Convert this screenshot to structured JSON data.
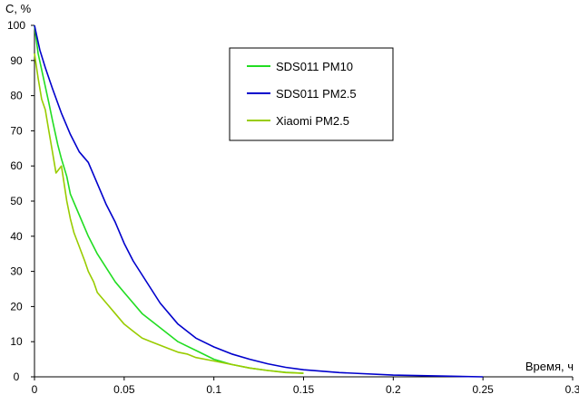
{
  "chart_data": {
    "type": "line",
    "title": "",
    "xlabel": "Время, ч",
    "ylabel": "С, %",
    "xlim": [
      0,
      0.3
    ],
    "ylim": [
      0,
      100
    ],
    "x_ticks": [
      "0",
      "0.05",
      "0.1",
      "0.15",
      "0.2",
      "0.25",
      "0.3"
    ],
    "y_ticks": [
      "0",
      "10",
      "20",
      "30",
      "40",
      "50",
      "60",
      "70",
      "80",
      "90",
      "100"
    ],
    "grid": false,
    "legend_position": "top-center",
    "series": [
      {
        "name": "SDS011 PM10",
        "color": "#22dd22",
        "x": [
          0,
          0.002,
          0.005,
          0.008,
          0.01,
          0.013,
          0.015,
          0.018,
          0.02,
          0.025,
          0.03,
          0.035,
          0.04,
          0.045,
          0.05,
          0.06,
          0.07,
          0.08,
          0.09,
          0.1,
          0.11,
          0.12,
          0.13,
          0.14,
          0.15
        ],
        "y": [
          100,
          92,
          85,
          78,
          73,
          66,
          62,
          57,
          52,
          46,
          40,
          35,
          31,
          27,
          24,
          18,
          14,
          10,
          7.5,
          5,
          3.5,
          2.5,
          1.8,
          1.3,
          1
        ]
      },
      {
        "name": "SDS011 PM2.5",
        "color": "#0000cc",
        "x": [
          0,
          0.003,
          0.006,
          0.01,
          0.015,
          0.02,
          0.025,
          0.03,
          0.035,
          0.04,
          0.045,
          0.05,
          0.055,
          0.06,
          0.065,
          0.07,
          0.08,
          0.09,
          0.1,
          0.11,
          0.12,
          0.13,
          0.14,
          0.15,
          0.17,
          0.2,
          0.25
        ],
        "y": [
          100,
          93,
          88,
          82,
          75,
          69,
          64,
          61,
          55,
          49,
          44,
          38,
          33,
          29,
          25,
          21,
          15,
          11,
          8.5,
          6.5,
          5,
          3.7,
          2.7,
          2,
          1.2,
          0.5,
          0
        ]
      },
      {
        "name": "Xiaomi PM2.5",
        "color": "#99cc00",
        "x": [
          0,
          0.002,
          0.004,
          0.006,
          0.008,
          0.01,
          0.012,
          0.015,
          0.018,
          0.02,
          0.022,
          0.025,
          0.028,
          0.03,
          0.033,
          0.035,
          0.04,
          0.045,
          0.05,
          0.055,
          0.06,
          0.065,
          0.07,
          0.075,
          0.08,
          0.085,
          0.09,
          0.1,
          0.11,
          0.12,
          0.13,
          0.14,
          0.15
        ],
        "y": [
          92,
          85,
          79,
          76,
          70,
          64,
          58,
          60,
          50,
          45,
          41,
          37,
          33,
          30,
          27,
          24,
          21,
          18,
          15,
          13,
          11,
          10,
          9,
          8,
          7,
          6.5,
          5.5,
          4.5,
          3.5,
          2.5,
          1.8,
          1.2,
          1
        ]
      }
    ]
  }
}
